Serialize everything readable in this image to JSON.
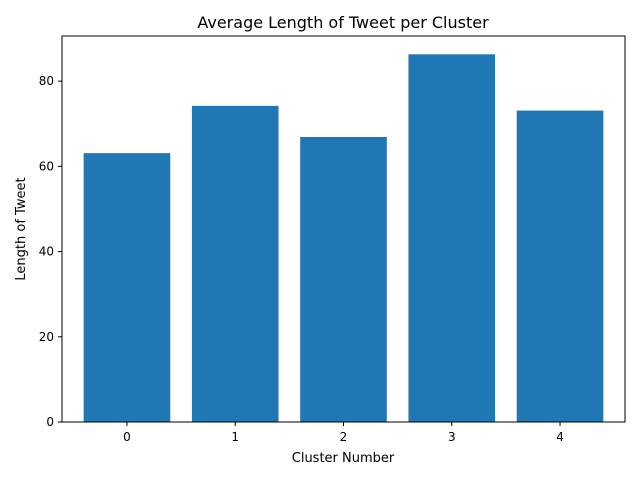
{
  "chart_data": {
    "type": "bar",
    "title": "Average Length of Tweet per Cluster",
    "xlabel": "Cluster Number",
    "ylabel": "Length of Tweet",
    "categories": [
      "0",
      "1",
      "2",
      "3",
      "4"
    ],
    "values": [
      63.1,
      74.2,
      66.9,
      86.3,
      73.1
    ],
    "ylim": [
      0,
      90.6
    ],
    "yticks": [
      0,
      20,
      40,
      60,
      80
    ],
    "bar_color": "#1f77b4",
    "grid": false,
    "legend": "none"
  }
}
